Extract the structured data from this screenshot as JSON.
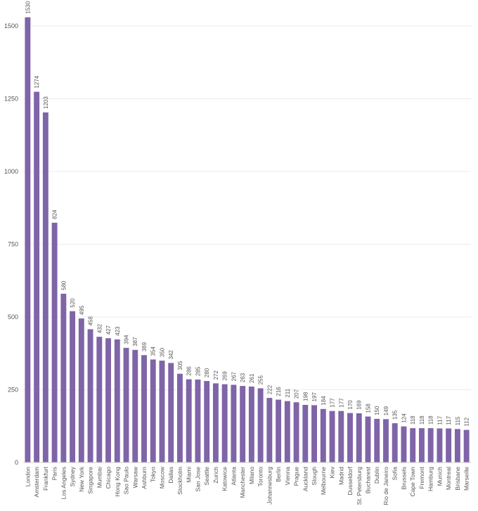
{
  "chart_data": {
    "type": "bar",
    "title": "",
    "xlabel": "",
    "ylabel": "",
    "ylim": [
      0,
      1500
    ],
    "yticks": [
      0,
      250,
      500,
      750,
      1000,
      1250,
      1500
    ],
    "grid": true,
    "legend": "none",
    "bar_color": "#7f64a8",
    "data_labels": true,
    "categories": [
      "London",
      "Amsterdam",
      "Frankfurt",
      "Paris",
      "Los Angeles",
      "Sydney",
      "New York",
      "Singapore",
      "Mumbai",
      "Chicago",
      "Hong Kong",
      "Sao Paulo",
      "Warsaw",
      "Ashburn",
      "Tokyo",
      "Moscow",
      "Dallas",
      "Stockholm",
      "Miami",
      "San Jose",
      "Seattle",
      "Zurich",
      "Katowice",
      "Atlanta",
      "Manchester",
      "Milano",
      "Toronto",
      "Johannesburg",
      "Berlin",
      "Vienna",
      "Prague",
      "Auckland",
      "Slough",
      "Melbourne",
      "Kiev",
      "Madrid",
      "Dusseldorf",
      "St. Petersburg",
      "Bucharest",
      "Dublin",
      "Rio de Janeiro",
      "Sofia",
      "Brussels",
      "Cape Town",
      "Fremont",
      "Hamburg",
      "Munich",
      "Montreal",
      "Brisbane",
      "Marseille"
    ],
    "values": [
      1530,
      1274,
      1203,
      824,
      580,
      520,
      495,
      458,
      432,
      427,
      423,
      394,
      387,
      369,
      354,
      350,
      342,
      305,
      286,
      285,
      280,
      272,
      269,
      267,
      263,
      261,
      255,
      222,
      216,
      211,
      207,
      198,
      197,
      184,
      177,
      177,
      170,
      169,
      158,
      150,
      149,
      135,
      124,
      118,
      118,
      118,
      117,
      117,
      115,
      112
    ]
  }
}
